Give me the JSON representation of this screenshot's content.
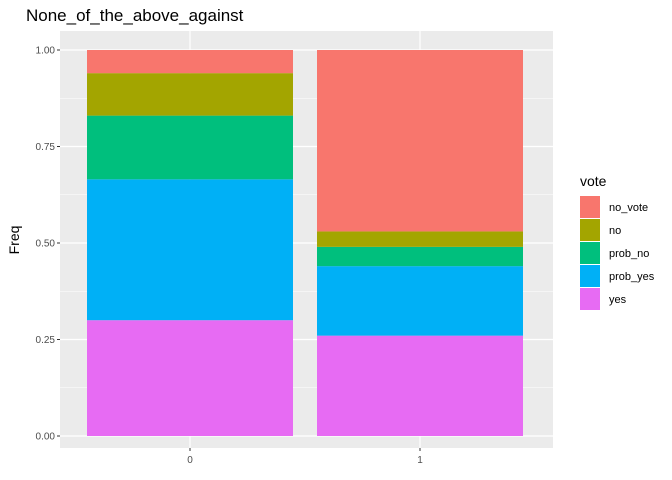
{
  "chart_data": {
    "type": "bar",
    "stacked": true,
    "title": "None_of_the_above_against",
    "xlabel": "",
    "ylabel": "Freq",
    "ylim": [
      0,
      1
    ],
    "yticks": [
      "0.00",
      "0.25",
      "0.50",
      "0.75",
      "1.00"
    ],
    "categories": [
      "0",
      "1"
    ],
    "grid": true,
    "legend": {
      "title": "vote",
      "position": "right"
    },
    "series": [
      {
        "name": "no_vote",
        "color": "#F8766D",
        "values": [
          0.06,
          0.47
        ]
      },
      {
        "name": "no",
        "color": "#A3A500",
        "values": [
          0.11,
          0.04
        ]
      },
      {
        "name": "prob_no",
        "color": "#00BF7D",
        "values": [
          0.165,
          0.05
        ]
      },
      {
        "name": "prob_yes",
        "color": "#00B0F6",
        "values": [
          0.365,
          0.18
        ]
      },
      {
        "name": "yes",
        "color": "#E76BF3",
        "values": [
          0.3,
          0.26
        ]
      }
    ]
  }
}
